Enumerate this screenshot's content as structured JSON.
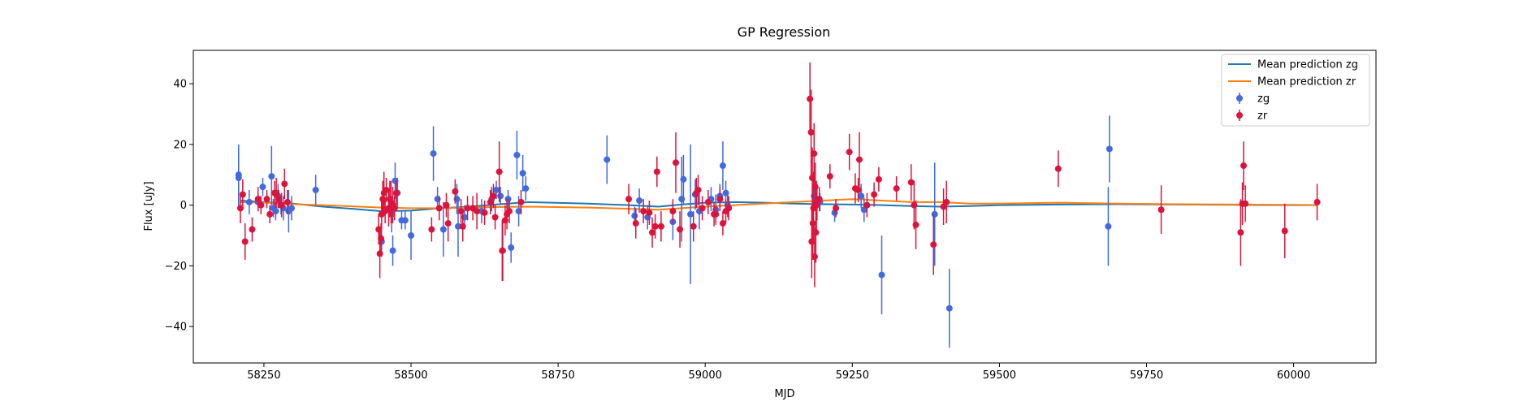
{
  "chart_data": {
    "type": "scatter",
    "title": "GP Regression",
    "xlabel": "MJD",
    "ylabel": "Flux [uJy]",
    "xlim": [
      58130,
      60140
    ],
    "ylim": [
      -52,
      51
    ],
    "x_ticks": [
      58250,
      58500,
      58750,
      59000,
      59250,
      59500,
      59750,
      60000
    ],
    "x_tick_labels": [
      "58250",
      "58500",
      "58750",
      "59000",
      "59250",
      "59500",
      "59750",
      "60000"
    ],
    "y_ticks": [
      -40,
      -20,
      0,
      20,
      40
    ],
    "y_tick_labels": [
      "−40",
      "−20",
      "0",
      "20",
      "40"
    ],
    "grid": false,
    "legend_position": "top-right",
    "legend": [
      {
        "label": "Mean prediction zg",
        "kind": "line",
        "color": "#1f77b4"
      },
      {
        "label": "Mean prediction zr",
        "kind": "line",
        "color": "#ff7f0e"
      },
      {
        "label": "zg",
        "kind": "errorbar",
        "color": "#4169e1"
      },
      {
        "label": "zr",
        "kind": "errorbar",
        "color": "#dc143c"
      }
    ],
    "lines": [
      {
        "name": "Mean prediction zg",
        "color": "#1f77b4",
        "x": [
          58210,
          58250,
          58300,
          58350,
          58400,
          58450,
          58500,
          58550,
          58600,
          58650,
          58700,
          58800,
          58870,
          58920,
          58960,
          59000,
          59050,
          59100,
          59150,
          59200,
          59250,
          59300,
          59350,
          59400,
          59450,
          59500,
          59600,
          59700,
          59800,
          59900,
          60000,
          60040
        ],
        "y": [
          1.5,
          1.0,
          0.5,
          -0.5,
          -1.2,
          -2.0,
          -1.8,
          -1.0,
          -0.5,
          0.3,
          1.0,
          0.5,
          0,
          -0.5,
          0.2,
          0.8,
          1.0,
          0.8,
          0.5,
          0.3,
          0.2,
          0,
          -0.3,
          -0.5,
          -0.3,
          0,
          0.2,
          0.3,
          0.2,
          0.1,
          0,
          0
        ]
      },
      {
        "name": "Mean prediction zr",
        "color": "#ff7f0e",
        "x": [
          58210,
          58250,
          58300,
          58350,
          58400,
          58450,
          58500,
          58550,
          58600,
          58650,
          58700,
          58800,
          58870,
          58920,
          58960,
          59000,
          59050,
          59100,
          59150,
          59200,
          59250,
          59300,
          59350,
          59400,
          59450,
          59500,
          59600,
          59700,
          59800,
          59900,
          60000,
          60040
        ],
        "y": [
          1.0,
          0.8,
          0.3,
          0,
          -0.4,
          -0.8,
          -1.0,
          -1.0,
          -0.8,
          -0.6,
          -0.5,
          -0.8,
          -1.2,
          -1.5,
          -1.0,
          -0.5,
          0,
          0.5,
          1.0,
          1.5,
          2.0,
          1.5,
          1.0,
          1.0,
          0.5,
          0.5,
          0.8,
          0.5,
          0.3,
          0.2,
          0.1,
          0
        ]
      }
    ],
    "series": [
      {
        "name": "zg",
        "color": "#4169e1",
        "points": [
          [
            58207,
            10,
            10
          ],
          [
            58207,
            9,
            10
          ],
          [
            58225,
            1,
            4
          ],
          [
            58240,
            1,
            3
          ],
          [
            58248,
            6,
            3
          ],
          [
            58263,
            9.5,
            10
          ],
          [
            58266,
            -1,
            3
          ],
          [
            58270,
            -2,
            3
          ],
          [
            58274,
            3,
            4
          ],
          [
            58279,
            0,
            3
          ],
          [
            58283,
            -1,
            4
          ],
          [
            58292,
            -2,
            7
          ],
          [
            58297,
            -1,
            4
          ],
          [
            58338,
            5,
            5
          ],
          [
            58450,
            -12,
            5
          ],
          [
            58467,
            -3,
            6
          ],
          [
            58469,
            -15,
            5
          ],
          [
            58473,
            8,
            6
          ],
          [
            58477,
            4,
            5
          ],
          [
            58484,
            -5,
            3
          ],
          [
            58490,
            -5,
            3
          ],
          [
            58500,
            -10,
            8
          ],
          [
            58538,
            17,
            9
          ],
          [
            58545,
            2,
            4
          ],
          [
            58555,
            -8,
            9
          ],
          [
            58578,
            2,
            5
          ],
          [
            58580,
            -7,
            10
          ],
          [
            58591,
            -4,
            4
          ],
          [
            58620,
            -2,
            4
          ],
          [
            58637,
            2,
            4
          ],
          [
            58645,
            5,
            3
          ],
          [
            58652,
            3,
            3
          ],
          [
            58656,
            -15,
            10
          ],
          [
            58665,
            2,
            3
          ],
          [
            58670,
            -14,
            5
          ],
          [
            58680,
            16.5,
            8
          ],
          [
            58683,
            -2,
            5
          ],
          [
            58690,
            10.5,
            6
          ],
          [
            58695,
            5.5,
            4
          ],
          [
            58833,
            15,
            8
          ],
          [
            58880,
            -3.5,
            3
          ],
          [
            58888,
            1.5,
            4
          ],
          [
            58902,
            -4,
            4
          ],
          [
            58945,
            -5.5,
            6
          ],
          [
            58960,
            2,
            14
          ],
          [
            58963,
            8.5,
            8
          ],
          [
            58975,
            -3,
            23
          ],
          [
            58983,
            3.5,
            5
          ],
          [
            58990,
            -2,
            6
          ],
          [
            59010,
            2,
            4
          ],
          [
            59018,
            -1.5,
            5
          ],
          [
            59025,
            3,
            4
          ],
          [
            59030,
            13,
            8
          ],
          [
            59035,
            4,
            4
          ],
          [
            59038,
            0,
            4
          ],
          [
            59185,
            3,
            4
          ],
          [
            59195,
            1,
            3
          ],
          [
            59220,
            -2.5,
            3
          ],
          [
            59265,
            3,
            4
          ],
          [
            59270,
            -1.5,
            4
          ],
          [
            59300,
            -23,
            13
          ],
          [
            59390,
            -3,
            17
          ],
          [
            59415,
            -34,
            13
          ],
          [
            59685,
            -7,
            13
          ],
          [
            59687,
            18.5,
            11
          ]
        ]
      },
      {
        "name": "zr",
        "color": "#dc143c",
        "points": [
          [
            58210,
            -1,
            5
          ],
          [
            58214,
            3.5,
            5
          ],
          [
            58218,
            -12,
            6
          ],
          [
            58230,
            -8,
            4
          ],
          [
            58240,
            2,
            4
          ],
          [
            58245,
            0,
            3
          ],
          [
            58255,
            2,
            3
          ],
          [
            58260,
            -3,
            3
          ],
          [
            58268,
            4,
            4
          ],
          [
            58271,
            4,
            5
          ],
          [
            58275,
            2,
            3
          ],
          [
            58280,
            0,
            4
          ],
          [
            58285,
            7,
            5
          ],
          [
            58290,
            1,
            4
          ],
          [
            58445,
            -8,
            5
          ],
          [
            58447,
            -16,
            8
          ],
          [
            58449,
            -11,
            5
          ],
          [
            58450,
            -3,
            5
          ],
          [
            58452,
            2,
            6
          ],
          [
            58454,
            4,
            7
          ],
          [
            58456,
            -2,
            4
          ],
          [
            58458,
            5,
            4
          ],
          [
            58462,
            -1,
            6
          ],
          [
            58464,
            2,
            6
          ],
          [
            58466,
            1,
            7
          ],
          [
            58469,
            0,
            6
          ],
          [
            58472,
            -1,
            4
          ],
          [
            58475,
            4,
            4
          ],
          [
            58535,
            -8,
            4
          ],
          [
            58548,
            -1,
            4
          ],
          [
            58560,
            0,
            4
          ],
          [
            58563,
            -6,
            6
          ],
          [
            58575,
            4.5,
            4
          ],
          [
            58585,
            -2,
            4
          ],
          [
            58588,
            -7,
            5
          ],
          [
            58596,
            -1,
            4
          ],
          [
            58605,
            -1,
            4
          ],
          [
            58612,
            -2,
            6
          ],
          [
            58625,
            -2.5,
            4
          ],
          [
            58635,
            1,
            4
          ],
          [
            58640,
            3,
            4
          ],
          [
            58643,
            -4,
            4
          ],
          [
            58650,
            11,
            10
          ],
          [
            58655,
            -15,
            10
          ],
          [
            58660,
            -5,
            5
          ],
          [
            58663,
            -3,
            5
          ],
          [
            58667,
            -2,
            4
          ],
          [
            58687,
            1,
            4
          ],
          [
            58870,
            2,
            5
          ],
          [
            58882,
            -6,
            5
          ],
          [
            58895,
            -2,
            4
          ],
          [
            58905,
            -2.5,
            4
          ],
          [
            58910,
            -9,
            5
          ],
          [
            58915,
            -7,
            4
          ],
          [
            58918,
            11,
            5
          ],
          [
            58925,
            -7,
            5
          ],
          [
            58945,
            -2,
            4
          ],
          [
            58950,
            14,
            10
          ],
          [
            58957,
            -8,
            6
          ],
          [
            58980,
            -7,
            5
          ],
          [
            58985,
            4,
            5
          ],
          [
            58988,
            5,
            5
          ],
          [
            58995,
            -1,
            4
          ],
          [
            59005,
            1,
            4
          ],
          [
            59015,
            -3,
            4
          ],
          [
            59018,
            -3,
            3
          ],
          [
            59025,
            2,
            4
          ],
          [
            59030,
            -6,
            4
          ],
          [
            59035,
            -2,
            4
          ],
          [
            59040,
            -1,
            4
          ],
          [
            59178,
            35,
            12
          ],
          [
            59180,
            24,
            14
          ],
          [
            59181,
            -12,
            12
          ],
          [
            59182,
            9,
            10
          ],
          [
            59183,
            -6,
            12
          ],
          [
            59184,
            -1,
            12
          ],
          [
            59185,
            17,
            10
          ],
          [
            59186,
            -17,
            10
          ],
          [
            59187,
            6,
            8
          ],
          [
            59188,
            -9,
            10
          ],
          [
            59189,
            0,
            8
          ],
          [
            59190,
            1,
            6
          ],
          [
            59194,
            2,
            4
          ],
          [
            59212,
            9.5,
            4
          ],
          [
            59222,
            -1,
            3
          ],
          [
            59245,
            17.5,
            6
          ],
          [
            59255,
            5.5,
            5
          ],
          [
            59260,
            5,
            4
          ],
          [
            59262,
            15,
            9
          ],
          [
            59275,
            0,
            4
          ],
          [
            59287,
            3.5,
            4
          ],
          [
            59295,
            8.5,
            4
          ],
          [
            59325,
            5.5,
            4
          ],
          [
            59350,
            7.5,
            6
          ],
          [
            59355,
            0,
            8
          ],
          [
            59358,
            -6.5,
            8
          ],
          [
            59388,
            -13,
            10
          ],
          [
            59405,
            -0.5,
            6
          ],
          [
            59410,
            1,
            7
          ],
          [
            59600,
            12,
            6
          ],
          [
            59775,
            -1.5,
            8
          ],
          [
            59910,
            -9,
            11
          ],
          [
            59913,
            0.5,
            7
          ],
          [
            59915,
            13,
            8
          ],
          [
            59918,
            0.5,
            6
          ],
          [
            59985,
            -8.5,
            9
          ],
          [
            60040,
            1,
            6
          ]
        ]
      }
    ]
  }
}
